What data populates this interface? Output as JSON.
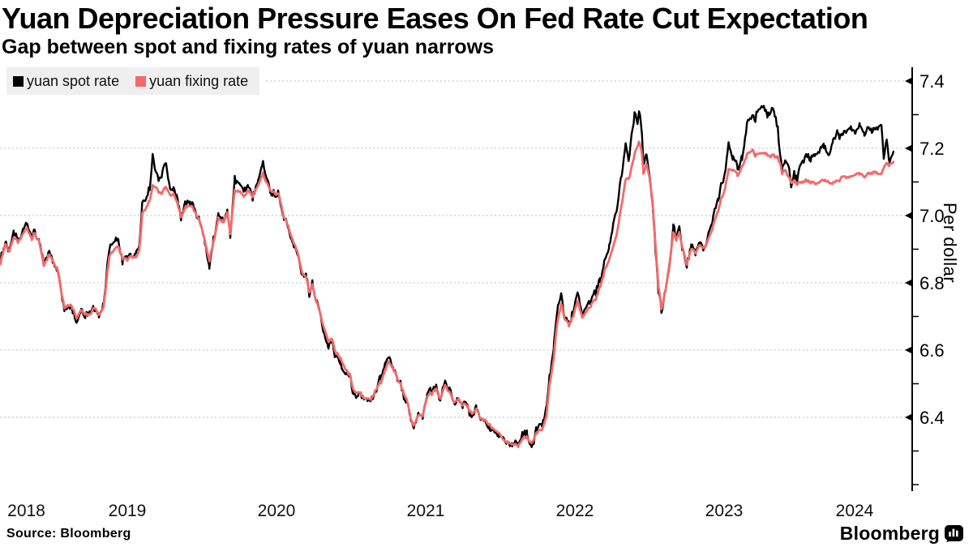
{
  "title": "Yuan Depreciation Pressure Eases On Fed Rate Cut Expectation",
  "subtitle": "Gap between spot and fixing rates of yuan narrows",
  "source": "Source: Bloomberg",
  "brand": {
    "name": "Bloomberg"
  },
  "legend": {
    "items": [
      {
        "label": "yuan spot rate",
        "color": "#000000"
      },
      {
        "label": "yuan fixing rate",
        "color": "#f56969"
      }
    ]
  },
  "chart_data": {
    "type": "line",
    "ylabel": "Per dollar",
    "xlabel": "",
    "x_unit": "decimal_year",
    "xlim": [
      2018.65,
      2024.75
    ],
    "ylim": [
      6.17,
      7.44
    ],
    "grid": "dotted horizontal at major y ticks",
    "legend_position": "top-left",
    "x_tick_labels": [
      "2018",
      "2019",
      "2020",
      "2021",
      "2022",
      "2023",
      "2024"
    ],
    "y_tick_labels": [
      "7.4",
      "7.2",
      "7.0",
      "6.8",
      "6.6",
      "6.4"
    ],
    "y_ticks": [
      7.4,
      7.2,
      7.0,
      6.8,
      6.6,
      6.4
    ],
    "y_minor_ticks": [
      7.3,
      7.1,
      6.9,
      6.7,
      6.5,
      6.3,
      6.2
    ],
    "series": [
      {
        "name": "yuan spot rate",
        "color": "#000000",
        "width": 2.4
      },
      {
        "name": "yuan fixing rate",
        "color": "#f56969",
        "width": 2.8
      }
    ],
    "points_format": [
      "decimal_year",
      "spot",
      "fixing"
    ],
    "points": [
      [
        2018.65,
        6.87,
        6.86
      ],
      [
        2018.68,
        6.93,
        6.92
      ],
      [
        2018.71,
        6.89,
        6.89
      ],
      [
        2018.74,
        6.94,
        6.93
      ],
      [
        2018.77,
        6.92,
        6.92
      ],
      [
        2018.8,
        6.95,
        6.94
      ],
      [
        2018.83,
        6.97,
        6.96
      ],
      [
        2018.86,
        6.93,
        6.93
      ],
      [
        2018.88,
        6.96,
        6.95
      ],
      [
        2018.91,
        6.92,
        6.92
      ],
      [
        2018.94,
        6.85,
        6.85
      ],
      [
        2018.97,
        6.89,
        6.88
      ],
      [
        2019.0,
        6.87,
        6.87
      ],
      [
        2019.03,
        6.84,
        6.84
      ],
      [
        2019.05,
        6.79,
        6.79
      ],
      [
        2019.08,
        6.71,
        6.72
      ],
      [
        2019.12,
        6.74,
        6.74
      ],
      [
        2019.16,
        6.69,
        6.7
      ],
      [
        2019.19,
        6.72,
        6.72
      ],
      [
        2019.22,
        6.71,
        6.71
      ],
      [
        2019.25,
        6.72,
        6.71
      ],
      [
        2019.28,
        6.73,
        6.73
      ],
      [
        2019.31,
        6.71,
        6.71
      ],
      [
        2019.34,
        6.74,
        6.73
      ],
      [
        2019.36,
        6.82,
        6.8
      ],
      [
        2019.38,
        6.9,
        6.88
      ],
      [
        2019.41,
        6.91,
        6.89
      ],
      [
        2019.44,
        6.93,
        6.91
      ],
      [
        2019.47,
        6.86,
        6.87
      ],
      [
        2019.5,
        6.88,
        6.87
      ],
      [
        2019.53,
        6.88,
        6.88
      ],
      [
        2019.56,
        6.88,
        6.87
      ],
      [
        2019.58,
        6.9,
        6.89
      ],
      [
        2019.6,
        7.03,
        7.0
      ],
      [
        2019.63,
        7.06,
        7.03
      ],
      [
        2019.65,
        7.09,
        7.05
      ],
      [
        2019.67,
        7.18,
        7.09
      ],
      [
        2019.69,
        7.12,
        7.08
      ],
      [
        2019.71,
        7.11,
        7.07
      ],
      [
        2019.73,
        7.13,
        7.07
      ],
      [
        2019.76,
        7.15,
        7.08
      ],
      [
        2019.78,
        7.1,
        7.07
      ],
      [
        2019.81,
        7.07,
        7.06
      ],
      [
        2019.84,
        7.04,
        7.03
      ],
      [
        2019.86,
        7.0,
        7.0
      ],
      [
        2019.89,
        7.03,
        7.02
      ],
      [
        2019.92,
        7.04,
        7.03
      ],
      [
        2019.95,
        7.01,
        7.01
      ],
      [
        2019.98,
        6.99,
        6.99
      ],
      [
        2020.02,
        6.93,
        6.93
      ],
      [
        2020.05,
        6.86,
        6.87
      ],
      [
        2020.08,
        6.94,
        6.93
      ],
      [
        2020.11,
        7.0,
        6.99
      ],
      [
        2020.14,
        6.98,
        6.98
      ],
      [
        2020.17,
        7.02,
        7.01
      ],
      [
        2020.19,
        6.93,
        6.94
      ],
      [
        2020.22,
        7.1,
        7.07
      ],
      [
        2020.25,
        7.09,
        7.07
      ],
      [
        2020.28,
        7.06,
        7.05
      ],
      [
        2020.31,
        7.08,
        7.07
      ],
      [
        2020.34,
        7.06,
        7.06
      ],
      [
        2020.37,
        7.11,
        7.09
      ],
      [
        2020.41,
        7.17,
        7.13
      ],
      [
        2020.43,
        7.12,
        7.1
      ],
      [
        2020.46,
        7.08,
        7.08
      ],
      [
        2020.49,
        7.07,
        7.07
      ],
      [
        2020.52,
        7.06,
        7.06
      ],
      [
        2020.55,
        7.0,
        7.0
      ],
      [
        2020.58,
        6.97,
        6.97
      ],
      [
        2020.61,
        6.93,
        6.93
      ],
      [
        2020.64,
        6.9,
        6.9
      ],
      [
        2020.67,
        6.84,
        6.84
      ],
      [
        2020.7,
        6.81,
        6.81
      ],
      [
        2020.72,
        6.76,
        6.77
      ],
      [
        2020.74,
        6.79,
        6.79
      ],
      [
        2020.77,
        6.74,
        6.74
      ],
      [
        2020.8,
        6.7,
        6.7
      ],
      [
        2020.82,
        6.66,
        6.67
      ],
      [
        2020.85,
        6.62,
        6.63
      ],
      [
        2020.87,
        6.64,
        6.64
      ],
      [
        2020.9,
        6.58,
        6.59
      ],
      [
        2020.93,
        6.57,
        6.58
      ],
      [
        2020.96,
        6.54,
        6.55
      ],
      [
        2020.99,
        6.53,
        6.53
      ],
      [
        2021.02,
        6.47,
        6.48
      ],
      [
        2021.05,
        6.48,
        6.48
      ],
      [
        2021.08,
        6.46,
        6.46
      ],
      [
        2021.11,
        6.44,
        6.45
      ],
      [
        2021.14,
        6.46,
        6.46
      ],
      [
        2021.17,
        6.49,
        6.49
      ],
      [
        2021.2,
        6.51,
        6.5
      ],
      [
        2021.23,
        6.55,
        6.54
      ],
      [
        2021.25,
        6.57,
        6.56
      ],
      [
        2021.28,
        6.54,
        6.54
      ],
      [
        2021.31,
        6.52,
        6.52
      ],
      [
        2021.34,
        6.49,
        6.49
      ],
      [
        2021.37,
        6.45,
        6.46
      ],
      [
        2021.4,
        6.38,
        6.39
      ],
      [
        2021.42,
        6.36,
        6.37
      ],
      [
        2021.45,
        6.4,
        6.4
      ],
      [
        2021.48,
        6.39,
        6.4
      ],
      [
        2021.51,
        6.47,
        6.46
      ],
      [
        2021.54,
        6.47,
        6.47
      ],
      [
        2021.57,
        6.49,
        6.48
      ],
      [
        2021.6,
        6.46,
        6.46
      ],
      [
        2021.63,
        6.5,
        6.49
      ],
      [
        2021.66,
        6.47,
        6.47
      ],
      [
        2021.69,
        6.45,
        6.45
      ],
      [
        2021.72,
        6.47,
        6.46
      ],
      [
        2021.75,
        6.44,
        6.44
      ],
      [
        2021.78,
        6.43,
        6.43
      ],
      [
        2021.81,
        6.4,
        6.41
      ],
      [
        2021.84,
        6.42,
        6.42
      ],
      [
        2021.87,
        6.38,
        6.39
      ],
      [
        2021.9,
        6.39,
        6.39
      ],
      [
        2021.93,
        6.37,
        6.38
      ],
      [
        2021.96,
        6.37,
        6.37
      ],
      [
        2021.99,
        6.36,
        6.36
      ],
      [
        2022.02,
        6.35,
        6.34
      ],
      [
        2022.05,
        6.33,
        6.33
      ],
      [
        2022.08,
        6.32,
        6.32
      ],
      [
        2022.12,
        6.31,
        6.31
      ],
      [
        2022.15,
        6.34,
        6.33
      ],
      [
        2022.18,
        6.35,
        6.34
      ],
      [
        2022.21,
        6.32,
        6.33
      ],
      [
        2022.24,
        6.36,
        6.35
      ],
      [
        2022.28,
        6.37,
        6.36
      ],
      [
        2022.31,
        6.42,
        6.4
      ],
      [
        2022.33,
        6.51,
        6.49
      ],
      [
        2022.36,
        6.61,
        6.58
      ],
      [
        2022.38,
        6.7,
        6.67
      ],
      [
        2022.41,
        6.77,
        6.74
      ],
      [
        2022.43,
        6.71,
        6.7
      ],
      [
        2022.46,
        6.67,
        6.67
      ],
      [
        2022.49,
        6.71,
        6.7
      ],
      [
        2022.52,
        6.76,
        6.74
      ],
      [
        2022.55,
        6.69,
        6.69
      ],
      [
        2022.58,
        6.72,
        6.71
      ],
      [
        2022.61,
        6.74,
        6.73
      ],
      [
        2022.64,
        6.77,
        6.75
      ],
      [
        2022.67,
        6.81,
        6.79
      ],
      [
        2022.7,
        6.87,
        6.84
      ],
      [
        2022.73,
        6.91,
        6.87
      ],
      [
        2022.75,
        6.96,
        6.9
      ],
      [
        2022.78,
        7.03,
        6.95
      ],
      [
        2022.8,
        7.09,
        7.0
      ],
      [
        2022.82,
        7.14,
        7.05
      ],
      [
        2022.84,
        7.2,
        7.1
      ],
      [
        2022.86,
        7.17,
        7.11
      ],
      [
        2022.88,
        7.23,
        7.14
      ],
      [
        2022.9,
        7.3,
        7.18
      ],
      [
        2022.92,
        7.26,
        7.2
      ],
      [
        2022.93,
        7.31,
        7.22
      ],
      [
        2022.95,
        7.24,
        7.18
      ],
      [
        2022.96,
        7.16,
        7.13
      ],
      [
        2022.98,
        7.2,
        7.16
      ],
      [
        2023.0,
        7.13,
        7.12
      ],
      [
        2023.02,
        7.05,
        7.05
      ],
      [
        2023.04,
        6.91,
        6.92
      ],
      [
        2023.06,
        6.77,
        6.79
      ],
      [
        2023.08,
        6.71,
        6.72
      ],
      [
        2023.11,
        6.78,
        6.78
      ],
      [
        2023.13,
        6.85,
        6.85
      ],
      [
        2023.16,
        6.97,
        6.95
      ],
      [
        2023.18,
        6.93,
        6.93
      ],
      [
        2023.2,
        6.97,
        6.95
      ],
      [
        2023.22,
        6.89,
        6.9
      ],
      [
        2023.25,
        6.86,
        6.86
      ],
      [
        2023.28,
        6.91,
        6.9
      ],
      [
        2023.31,
        6.89,
        6.89
      ],
      [
        2023.34,
        6.92,
        6.91
      ],
      [
        2023.37,
        6.91,
        6.91
      ],
      [
        2023.4,
        6.94,
        6.93
      ],
      [
        2023.43,
        6.99,
        6.97
      ],
      [
        2023.46,
        7.04,
        7.01
      ],
      [
        2023.48,
        7.09,
        7.05
      ],
      [
        2023.51,
        7.14,
        7.09
      ],
      [
        2023.53,
        7.22,
        7.14
      ],
      [
        2023.56,
        7.16,
        7.13
      ],
      [
        2023.59,
        7.14,
        7.12
      ],
      [
        2023.62,
        7.18,
        7.15
      ],
      [
        2023.64,
        7.24,
        7.17
      ],
      [
        2023.66,
        7.29,
        7.19
      ],
      [
        2023.69,
        7.31,
        7.2
      ],
      [
        2023.71,
        7.29,
        7.18
      ],
      [
        2023.73,
        7.33,
        7.19
      ],
      [
        2023.76,
        7.31,
        7.18
      ],
      [
        2023.79,
        7.3,
        7.18
      ],
      [
        2023.82,
        7.32,
        7.18
      ],
      [
        2023.84,
        7.29,
        7.17
      ],
      [
        2023.86,
        7.25,
        7.17
      ],
      [
        2023.875,
        7.17,
        7.15
      ],
      [
        2023.89,
        7.13,
        7.12
      ],
      [
        2023.91,
        7.15,
        7.13
      ],
      [
        2023.93,
        7.14,
        7.11
      ],
      [
        2023.95,
        7.09,
        7.1
      ],
      [
        2023.97,
        7.12,
        7.1
      ],
      [
        2023.99,
        7.1,
        7.09
      ],
      [
        2024.02,
        7.16,
        7.1
      ],
      [
        2024.05,
        7.19,
        7.11
      ],
      [
        2024.08,
        7.17,
        7.1
      ],
      [
        2024.11,
        7.19,
        7.1
      ],
      [
        2024.14,
        7.19,
        7.1
      ],
      [
        2024.17,
        7.2,
        7.1
      ],
      [
        2024.2,
        7.18,
        7.1
      ],
      [
        2024.23,
        7.23,
        7.1
      ],
      [
        2024.26,
        7.24,
        7.1
      ],
      [
        2024.29,
        7.23,
        7.11
      ],
      [
        2024.32,
        7.24,
        7.11
      ],
      [
        2024.35,
        7.25,
        7.11
      ],
      [
        2024.38,
        7.24,
        7.12
      ],
      [
        2024.41,
        7.26,
        7.12
      ],
      [
        2024.44,
        7.25,
        7.12
      ],
      [
        2024.47,
        7.27,
        7.13
      ],
      [
        2024.5,
        7.26,
        7.13
      ],
      [
        2024.53,
        7.27,
        7.13
      ],
      [
        2024.555,
        7.28,
        7.13
      ],
      [
        2024.57,
        7.17,
        7.14
      ],
      [
        2024.59,
        7.21,
        7.15
      ],
      [
        2024.61,
        7.16,
        7.15
      ],
      [
        2024.635,
        7.19,
        7.16
      ]
    ]
  }
}
